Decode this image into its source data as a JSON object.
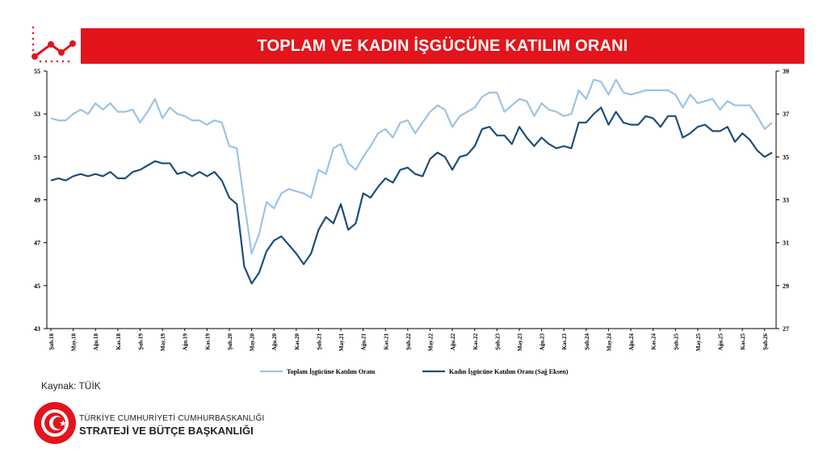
{
  "header": {
    "title": "TOPLAM VE KADIN İŞGÜCÜNE KATILIM ORANI"
  },
  "colors": {
    "banner": "#e3141b",
    "total": "#9dc3e6",
    "women": "#1f4e79"
  },
  "footer": {
    "source": "Kaynak: TÜİK",
    "org_line1": "TÜRKİYE CUMHURİYETİ CUMHURBAŞKANLIĞI",
    "org_line2": "STRATEJİ VE BÜTÇE BAŞKANLIĞI"
  },
  "chart_data": {
    "type": "line",
    "title": "",
    "xlabel": "",
    "ylabel": "",
    "x_start": "2018-02",
    "x_end": "2026-02",
    "x_ticks": [
      "Şub.18",
      "May.18",
      "Ağu.18",
      "Kas.18",
      "Şub.19",
      "May.19",
      "Ağu.19",
      "Kas.19",
      "Şub.20",
      "May.20",
      "Ağu.20",
      "Kas.20",
      "Şub.21",
      "May.21",
      "Ağu.21",
      "Kas.21",
      "Şub.22",
      "May.22",
      "Ağu.22",
      "Kas.22",
      "Şub.23",
      "May.23",
      "Ağu.23",
      "Kas.23",
      "Şub.24",
      "May.24",
      "Ağu.24",
      "Kas.24",
      "Şub.25",
      "May.25",
      "Ağu.25",
      "Kas.25",
      "Şub.26"
    ],
    "y_left": {
      "ylim": [
        43,
        55
      ],
      "ticks": [
        "43",
        "45",
        "47",
        "49",
        "51",
        "53",
        "55"
      ]
    },
    "y_right": {
      "ylim": [
        27,
        39
      ],
      "ticks": [
        "27",
        "29",
        "31",
        "33",
        "35",
        "37",
        "39"
      ]
    },
    "grid": false,
    "legend": "bottom",
    "series": [
      {
        "name": "Toplam İşgücüne Katılım Oranı",
        "axis": "left",
        "values": [
          52.8,
          52.7,
          52.7,
          53.0,
          53.2,
          53.0,
          53.5,
          53.2,
          53.5,
          53.1,
          53.1,
          53.2,
          52.6,
          53.1,
          53.7,
          52.8,
          53.3,
          53.0,
          52.9,
          52.7,
          52.7,
          52.5,
          52.7,
          52.6,
          51.5,
          51.4,
          48.9,
          46.5,
          47.4,
          48.9,
          48.6,
          49.3,
          49.5,
          49.4,
          49.3,
          49.1,
          50.4,
          50.2,
          51.4,
          51.6,
          50.7,
          50.4,
          51.0,
          51.5,
          52.1,
          52.3,
          51.9,
          52.6,
          52.7,
          52.1,
          52.6,
          53.1,
          53.4,
          53.2,
          52.4,
          52.9,
          53.1,
          53.3,
          53.8,
          54.0,
          54.0,
          53.1,
          53.4,
          53.7,
          53.6,
          52.9,
          53.5,
          53.2,
          53.1,
          52.9,
          53.0,
          54.1,
          53.7,
          54.6,
          54.5,
          53.9,
          54.6,
          54.0,
          53.9,
          54.0,
          54.1,
          54.1,
          54.1,
          54.1,
          53.9,
          53.3,
          53.9,
          53.5,
          53.6,
          53.7,
          53.2,
          53.6,
          53.4,
          53.4,
          53.4,
          52.9,
          52.3,
          52.6
        ]
      },
      {
        "name": "Kadın İşgücüne Katılım Oranı (Sağ Eksen)",
        "axis": "right",
        "values": [
          33.9,
          34.0,
          33.9,
          34.1,
          34.2,
          34.1,
          34.2,
          34.1,
          34.3,
          34.0,
          34.0,
          34.3,
          34.4,
          34.6,
          34.8,
          34.7,
          34.7,
          34.2,
          34.3,
          34.1,
          34.3,
          34.1,
          34.3,
          33.9,
          33.1,
          32.8,
          29.9,
          29.1,
          29.6,
          30.6,
          31.1,
          31.3,
          30.9,
          30.5,
          30.0,
          30.5,
          31.6,
          32.2,
          31.9,
          32.8,
          31.6,
          31.9,
          33.3,
          33.1,
          33.6,
          34.0,
          33.8,
          34.4,
          34.5,
          34.2,
          34.1,
          34.9,
          35.2,
          35.0,
          34.4,
          35.0,
          35.1,
          35.5,
          36.3,
          36.4,
          36.0,
          36.0,
          35.6,
          36.4,
          35.9,
          35.5,
          35.9,
          35.6,
          35.4,
          35.5,
          35.4,
          36.6,
          36.6,
          37.0,
          37.3,
          36.5,
          37.1,
          36.6,
          36.5,
          36.5,
          36.9,
          36.8,
          36.4,
          36.9,
          36.9,
          35.9,
          36.1,
          36.4,
          36.5,
          36.2,
          36.2,
          36.4,
          35.7,
          36.1,
          35.8,
          35.3,
          35.0,
          35.2
        ]
      }
    ]
  }
}
